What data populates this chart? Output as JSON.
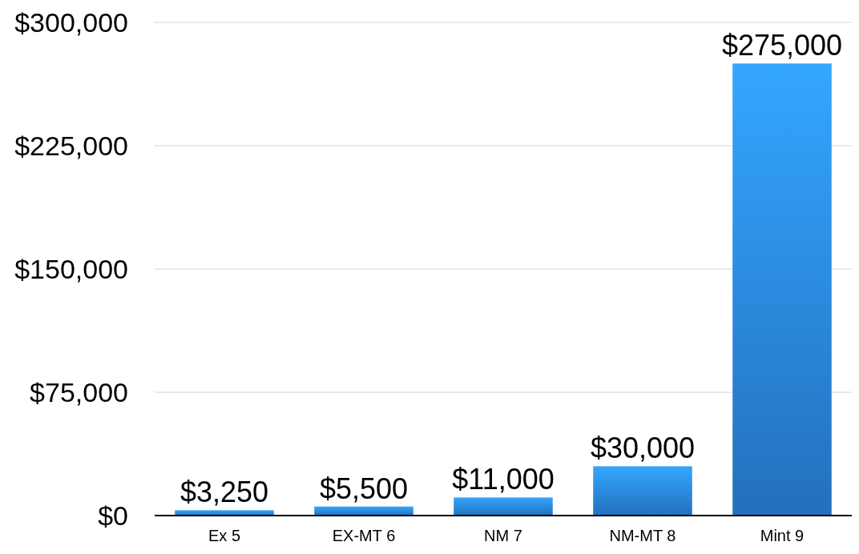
{
  "chart_data": {
    "type": "bar",
    "categories": [
      "Ex 5",
      "EX-MT 6",
      "NM 7",
      "NM-MT 8",
      "Mint 9"
    ],
    "values": [
      3250,
      5500,
      11000,
      30000,
      275000
    ],
    "value_labels": [
      "$3,250",
      "$5,500",
      "$11,000",
      "$30,000",
      "$275,000"
    ],
    "color": "#2a86e2",
    "ylim": [
      0,
      300000
    ],
    "yticks": [
      {
        "value": 0,
        "label": "$0"
      },
      {
        "value": 75000,
        "label": "$75,000"
      },
      {
        "value": 150000,
        "label": "$150,000"
      },
      {
        "value": 225000,
        "label": "$225,000"
      },
      {
        "value": 300000,
        "label": "$300,000"
      }
    ],
    "grid": "y"
  }
}
